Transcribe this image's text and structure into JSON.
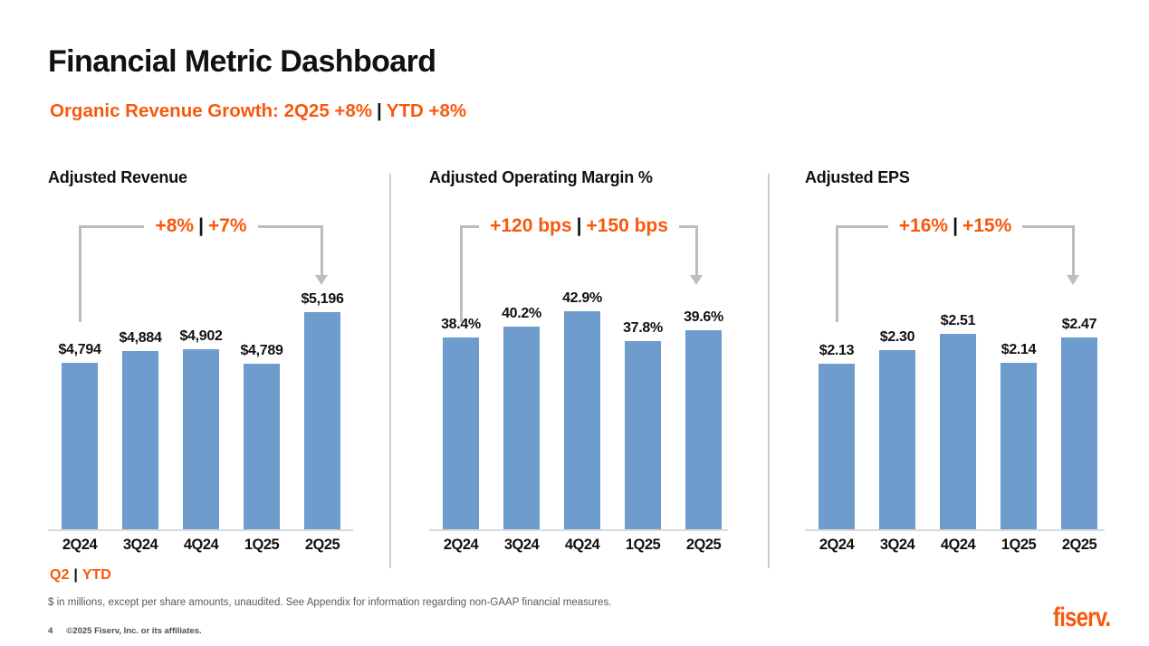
{
  "header": {
    "title": "Financial Metric Dashboard",
    "subtitle_q2": "Organic Revenue Growth: 2Q25 +8%",
    "subtitle_sep": "|",
    "subtitle_ytd": "YTD +8%"
  },
  "chart_data": [
    {
      "type": "bar",
      "title": "Adjusted Revenue",
      "callout_q2": "+8%",
      "callout_sep": "|",
      "callout_ytd": "+7%",
      "categories": [
        "2Q24",
        "3Q24",
        "4Q24",
        "1Q25",
        "2Q25"
      ],
      "values": [
        4794,
        4884,
        4902,
        4789,
        5196
      ],
      "value_labels": [
        "$4,794",
        "$4,884",
        "$4,902",
        "$4,789",
        "$5,196"
      ],
      "ylim": [
        3480,
        5230
      ],
      "grid": false,
      "legend_position": "none"
    },
    {
      "type": "bar",
      "title": "Adjusted Operating Margin %",
      "callout_q2": "+120 bps",
      "callout_sep": "|",
      "callout_ytd": "+150 bps",
      "categories": [
        "2Q24",
        "3Q24",
        "4Q24",
        "1Q25",
        "2Q25"
      ],
      "values": [
        38.4,
        40.2,
        42.9,
        37.8,
        39.6
      ],
      "value_labels": [
        "38.4%",
        "40.2%",
        "42.9%",
        "37.8%",
        "39.6%"
      ],
      "ylim": [
        5.5,
        43.5
      ],
      "grid": false,
      "legend_position": "none"
    },
    {
      "type": "bar",
      "title": "Adjusted EPS",
      "callout_q2": "+16%",
      "callout_sep": "|",
      "callout_ytd": "+15%",
      "categories": [
        "2Q24",
        "3Q24",
        "4Q24",
        "1Q25",
        "2Q25"
      ],
      "values": [
        2.13,
        2.3,
        2.51,
        2.14,
        2.47
      ],
      "value_labels": [
        "$2.13",
        "$2.30",
        "$2.51",
        "$2.14",
        "$2.47"
      ],
      "ylim": [
        0,
        2.85
      ],
      "grid": false,
      "legend_position": "none"
    }
  ],
  "legend": {
    "q2": "Q2",
    "sep": "|",
    "ytd": "YTD"
  },
  "footnote": "$ in millions, except per share amounts, unaudited. See Appendix for information regarding non-GAAP financial measures.",
  "footer": {
    "page_number": "4",
    "copyright": "©2025 Fiserv, Inc. or its affiliates."
  },
  "logo_text": "fiserv.",
  "colors": {
    "orange": "#F8580C",
    "bar_blue": "#6D9CCD",
    "bracket_gray": "#BDBDBD",
    "axis_gray": "#DADADA",
    "footnote_gray": "#595959"
  }
}
